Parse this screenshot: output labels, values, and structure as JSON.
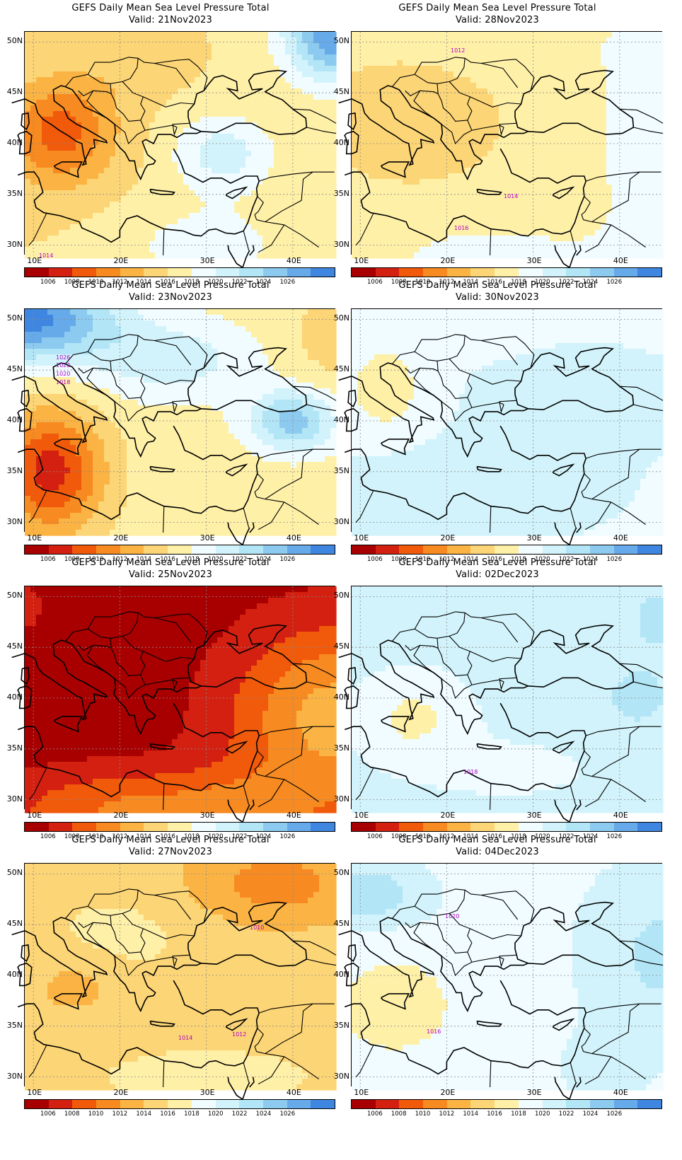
{
  "panels": [
    {
      "title": "GEFS Daily Mean Sea Level Pressure Total",
      "valid": "Valid: 21Nov2023",
      "scenario": "low-west-high-ne",
      "contour_labels": [
        "1014"
      ]
    },
    {
      "title": "GEFS Daily Mean Sea Level Pressure Total",
      "valid": "Valid: 28Nov2023",
      "scenario": "flat-mid",
      "contour_labels": [
        "1012",
        "1014",
        "1016"
      ]
    },
    {
      "title": "GEFS Daily Mean Sea Level Pressure Total",
      "valid": "Valid: 23Nov2023",
      "scenario": "high-nw-low-sw",
      "contour_labels": [
        "1026",
        "1022",
        "1020",
        "1018"
      ]
    },
    {
      "title": "GEFS Daily Mean Sea Level Pressure Total",
      "valid": "Valid: 30Nov2023",
      "scenario": "mild-high",
      "contour_labels": []
    },
    {
      "title": "GEFS Daily Mean Sea Level Pressure Total",
      "valid": "Valid: 25Nov2023",
      "scenario": "deep-low",
      "contour_labels": []
    },
    {
      "title": "GEFS Daily Mean Sea Level Pressure Total",
      "valid": "Valid: 02Dec2023",
      "scenario": "high-east",
      "contour_labels": [
        "1018"
      ]
    },
    {
      "title": "GEFS Daily Mean Sea Level Pressure Total",
      "valid": "Valid: 27Nov2023",
      "scenario": "low-ne",
      "contour_labels": [
        "1010",
        "1012",
        "1014"
      ]
    },
    {
      "title": "GEFS Daily Mean Sea Level Pressure Total",
      "valid": "Valid: 04Dec2023",
      "scenario": "high-nw-east",
      "contour_labels": [
        "1020",
        "1016"
      ]
    }
  ],
  "axes": {
    "lat_labels": [
      "50N",
      "45N",
      "40N",
      "35N",
      "30N"
    ],
    "lon_labels": [
      "10E",
      "20E",
      "30E",
      "40E"
    ]
  },
  "colorbar": {
    "labels": [
      "1006",
      "1008",
      "1010",
      "1012",
      "1014",
      "1016",
      "1018",
      "1020",
      "1022",
      "1024",
      "1026"
    ],
    "colors": [
      "#a80000",
      "#d42010",
      "#f05a0a",
      "#f78a20",
      "#fbb444",
      "#fcd576",
      "#fff0a8",
      "#f0fcff",
      "#d2f3fb",
      "#b2e5f6",
      "#8ccaf0",
      "#66aaea",
      "#3f86e0"
    ]
  },
  "contour_color": "#b000c8"
}
